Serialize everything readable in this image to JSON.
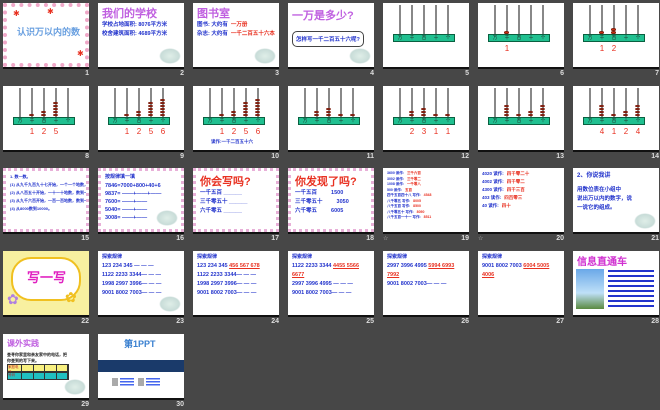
{
  "colors": {
    "background": "#474747",
    "abacus_bar": "#20c090",
    "bead": "#d03010",
    "accent_red": "#e83020",
    "text_blue": "#2233cc",
    "title_purple": "#c060e0"
  },
  "abacus_rods": [
    "万",
    "千",
    "百",
    "十",
    "个"
  ],
  "slides": [
    {
      "n": "1",
      "type": "cover",
      "title": "认识万以内的数"
    },
    {
      "n": "2",
      "type": "text",
      "title": "我们的学校",
      "lines": [
        [
          "学校占地面积: 8076平方米"
        ],
        [
          "校舍建筑面积: 4689平方米"
        ]
      ]
    },
    {
      "n": "3",
      "type": "text",
      "title": "图书室",
      "lines": [
        [
          "图书: 大约有",
          "一万册"
        ],
        [
          "杂志: 大约有",
          "一千二百五十六本"
        ]
      ]
    },
    {
      "n": "4",
      "type": "bubble",
      "title": "一万是多少?",
      "bubble": "怎样写一千二百五十六呢?"
    },
    {
      "n": "5",
      "type": "abacus",
      "beads": [
        0,
        0,
        0,
        0,
        0
      ],
      "digits": [
        "",
        "",
        "",
        "",
        ""
      ]
    },
    {
      "n": "6",
      "type": "abacus",
      "beads": [
        0,
        1,
        0,
        0,
        0
      ],
      "digits": [
        "",
        "1",
        "",
        "",
        ""
      ]
    },
    {
      "n": "7",
      "type": "abacus",
      "beads": [
        0,
        1,
        2,
        0,
        0
      ],
      "digits": [
        "",
        "1",
        "2",
        "",
        ""
      ]
    },
    {
      "n": "8",
      "type": "abacus",
      "beads": [
        0,
        1,
        2,
        5,
        0
      ],
      "digits": [
        "",
        "1",
        "2",
        "5",
        ""
      ]
    },
    {
      "n": "9",
      "type": "abacus",
      "beads": [
        0,
        1,
        2,
        5,
        6
      ],
      "digits": [
        "",
        "1",
        "2",
        "5",
        "6"
      ]
    },
    {
      "n": "10",
      "type": "abacus",
      "beads": [
        0,
        1,
        2,
        5,
        6
      ],
      "digits": [
        "",
        "1",
        "2",
        "5",
        "6"
      ],
      "caption": "读作:一千二百五十六"
    },
    {
      "n": "11",
      "type": "abacus",
      "beads": [
        0,
        2,
        3,
        1,
        1
      ],
      "digits": [
        "",
        "",
        "",
        "",
        ""
      ]
    },
    {
      "n": "12",
      "type": "abacus",
      "beads": [
        0,
        2,
        3,
        1,
        1
      ],
      "digits": [
        "",
        "2",
        "3",
        "1",
        "1"
      ]
    },
    {
      "n": "13",
      "type": "abacus",
      "beads": [
        0,
        4,
        1,
        2,
        4
      ],
      "digits": [
        "",
        "",
        "",
        "",
        ""
      ]
    },
    {
      "n": "14",
      "type": "abacus",
      "beads": [
        0,
        4,
        1,
        2,
        4
      ],
      "digits": [
        "",
        "4",
        "1",
        "2",
        "4"
      ]
    },
    {
      "n": "15",
      "type": "list",
      "lines": [
        [
          "1. 数一数。"
        ],
        [
          "(1) 从九千九百九十七开始，一个一个地数，数到一万。"
        ],
        [
          "(2) 从八百五十开始，一十一十地数，数到一千零二。"
        ],
        [
          "(3) 从九千六百开始，一百一百地数，数到一万。"
        ],
        [
          "(4) 从8000数到10000。"
        ]
      ]
    },
    {
      "n": "16",
      "type": "text",
      "title": "按规律填一填",
      "lines": [
        [
          "7846=7000+800+40+6"
        ],
        [
          "9837= ——+——+——"
        ],
        [
          "7600= ——+——"
        ],
        [
          "5040= ——+——"
        ],
        [
          "3008= ——+——"
        ]
      ]
    },
    {
      "n": "17",
      "type": "text",
      "title": "你会写吗?",
      "lines": [
        [
          "一千五百 ______"
        ],
        [
          "三千零五十 ______"
        ],
        [
          "六千零五 ______"
        ]
      ]
    },
    {
      "n": "18",
      "type": "text",
      "title": "你发现了吗?",
      "lines": [
        [
          "一千五百",
          "1500"
        ],
        [
          "三千零五十",
          "3050"
        ],
        [
          "六千零五",
          "6005"
        ]
      ]
    },
    {
      "n": "19",
      "type": "list",
      "lines": [
        [
          "3600 读作:",
          "三千六百"
        ],
        [
          "3002 读作:",
          "三千零二"
        ],
        [
          "1008 读作:",
          "一千零八"
        ],
        [
          "500 读作:",
          "五百"
        ],
        [
          "四千五百四十八 写作:",
          "4548"
        ],
        [
          "八千零五 写作:",
          "8005"
        ],
        [
          "八千五百 写作:",
          "8500"
        ],
        [
          "八千零五十 写作:",
          "8050"
        ],
        [
          "八千五百一十一 写作:",
          "8511"
        ]
      ],
      "note": "☆"
    },
    {
      "n": "20",
      "type": "list",
      "lines": [
        [
          "4020 读作:",
          "四千零二十"
        ],
        [
          "4002 读作:",
          "四千零二"
        ],
        [
          "4300 读作:",
          "四千三百"
        ],
        [
          "403 读作:",
          "四百零三"
        ],
        [
          "40 读作:",
          "四十"
        ]
      ],
      "note": "☆"
    },
    {
      "n": "21",
      "type": "text",
      "title": "2、你说我讲",
      "lines": [
        [
          "用数位表在小组中"
        ],
        [
          "说出万以内的数字，说"
        ],
        [
          "一说它的组成。"
        ]
      ]
    },
    {
      "n": "22",
      "type": "write",
      "title": "写一写"
    },
    {
      "n": "23",
      "type": "text",
      "title": "探索规律",
      "lines": [
        [
          "123 234 345 — — —"
        ],
        [
          "1122 2233 3344— — —"
        ],
        [
          "1998 2997 3996— — —"
        ],
        [
          "9001 8002 7003— — —"
        ]
      ]
    },
    {
      "n": "24",
      "type": "text",
      "title": "探索规律",
      "lines": [
        [
          "123 234 345 ",
          "456 567 678"
        ],
        [
          "1122 2233 3344— — —"
        ],
        [
          "1998 2997 3996— — —"
        ],
        [
          "9001 8002 7003— — —"
        ]
      ]
    },
    {
      "n": "25",
      "type": "text",
      "title": "探索规律",
      "lines": [
        [
          "1122 2233 3344 ",
          "4455 5566"
        ],
        [
          "",
          "6677"
        ],
        [
          "2997 3996 4995 — — —"
        ],
        [
          "9001 8002 7003— — —"
        ]
      ]
    },
    {
      "n": "26",
      "type": "text",
      "title": "探索规律",
      "lines": [
        [
          "2997 3996 4995 ",
          "5994 6993"
        ],
        [
          "",
          "7992"
        ],
        [
          "9001 8002 7003— — —"
        ]
      ]
    },
    {
      "n": "27",
      "type": "text",
      "title": "探索规律",
      "lines": [
        [
          "9001 8002 7003 ",
          "6004 5005"
        ],
        [
          "",
          "4006"
        ]
      ]
    },
    {
      "n": "28",
      "type": "info",
      "title": "信息直通车"
    },
    {
      "n": "29",
      "type": "practice",
      "title": "课外实践",
      "text": "查寻你家里和亲友家中的电话，把你查到的写下来。",
      "rows": [
        "家庭电话",
        "号码"
      ]
    },
    {
      "n": "30",
      "type": "logo",
      "title": "第1PPT"
    }
  ]
}
